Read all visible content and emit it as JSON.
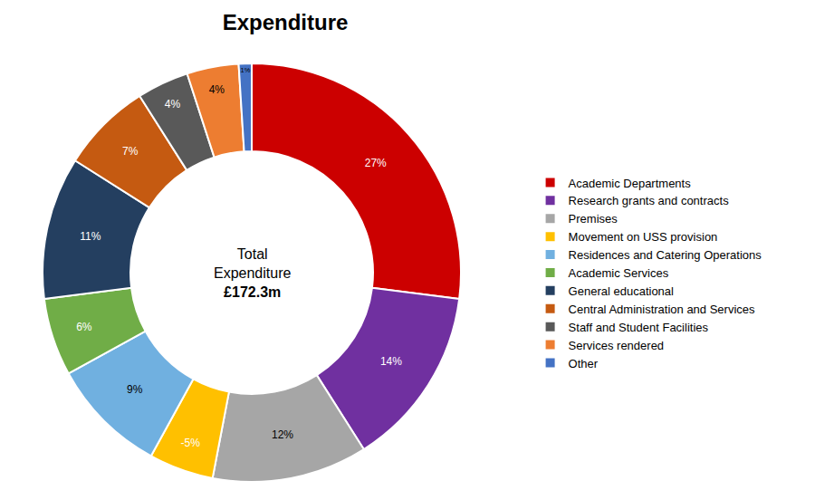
{
  "chart_data": {
    "type": "pie",
    "title": "Expenditure",
    "categories": [
      "Academic Departments",
      "Research grants and contracts",
      "Premises",
      "Movement on USS provision",
      "Residences and Catering Operations",
      "Academic Services",
      "General educational",
      "Central Administration and Services",
      "Staff and Student Facilities",
      "Services rendered",
      "Other"
    ],
    "values": [
      27,
      14,
      12,
      -5,
      9,
      6,
      11,
      7,
      4,
      4,
      1
    ],
    "value_labels": [
      "27%",
      "14%",
      "12%",
      "-5%",
      "9%",
      "6%",
      "11%",
      "7%",
      "4%",
      "4%",
      "1%"
    ],
    "colors": [
      "#CC0000",
      "#7030A0",
      "#A6A6A6",
      "#FFC000",
      "#70B0E0",
      "#70AD47",
      "#243F60",
      "#C55A11",
      "#595959",
      "#ED7D31",
      "#4472C4"
    ],
    "annotations": [
      "Total",
      "Expenditure",
      "£172.3m"
    ],
    "data_labels": true,
    "legend": "right"
  }
}
